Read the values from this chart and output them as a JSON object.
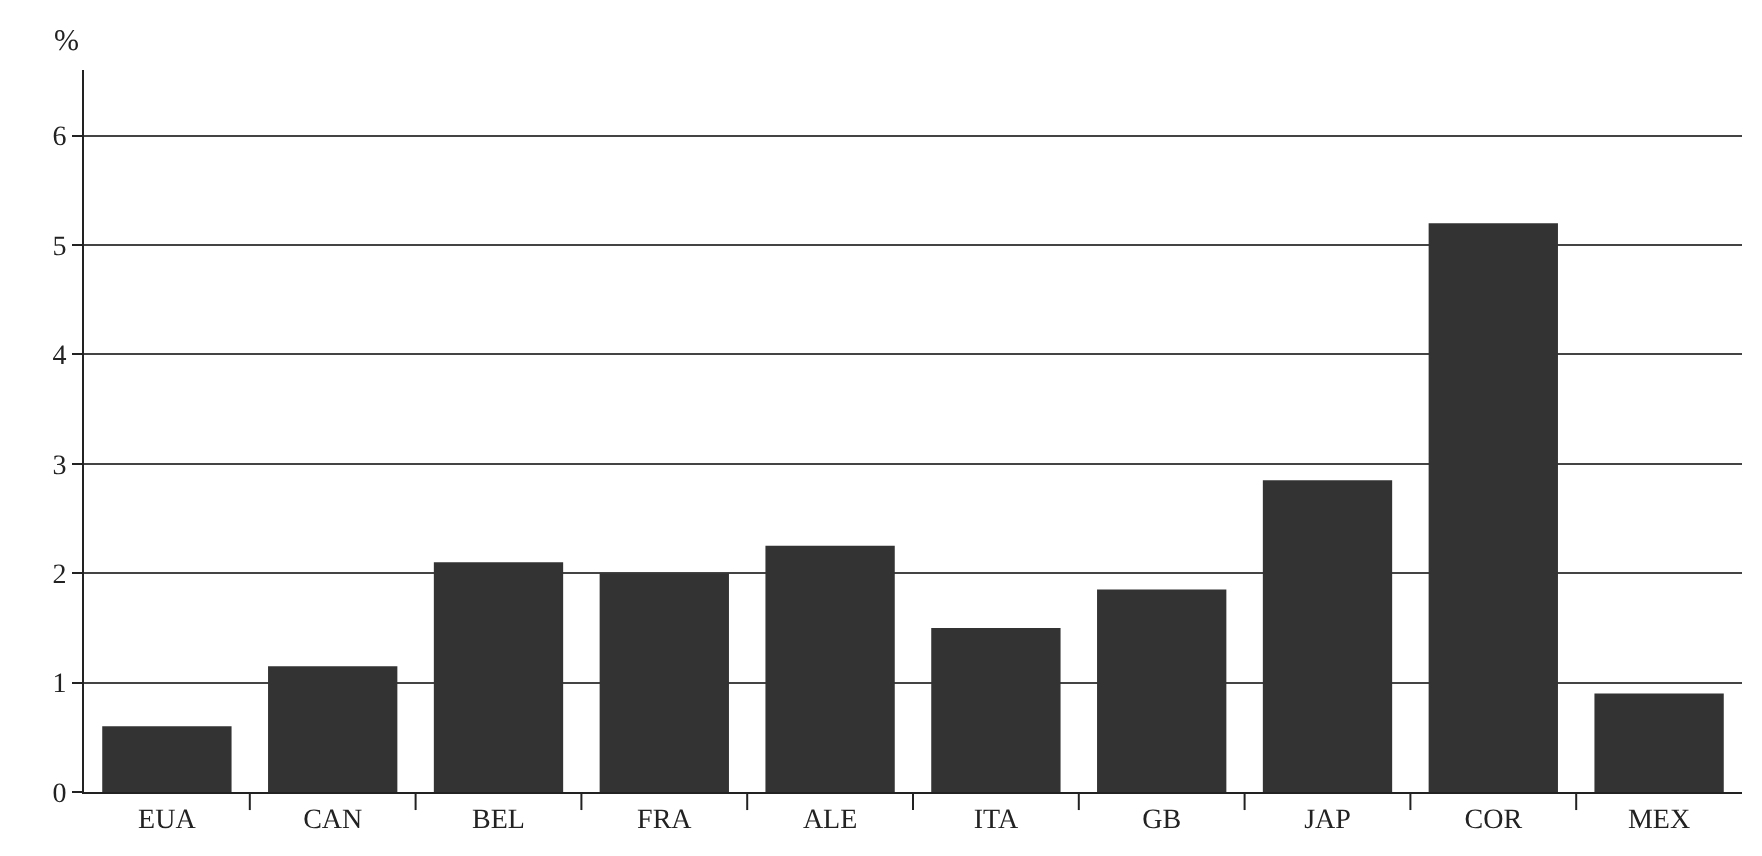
{
  "chart_data": {
    "type": "bar",
    "ylabel": "%",
    "categories": [
      "EUA",
      "CAN",
      "BEL",
      "FRA",
      "ALE",
      "ITA",
      "GB",
      "JAP",
      "COR",
      "MEX"
    ],
    "values": [
      0.6,
      1.15,
      2.1,
      2.0,
      2.25,
      1.5,
      1.85,
      2.85,
      5.2,
      0.9
    ],
    "color": "#333333",
    "ylim": [
      0,
      6.6
    ],
    "yticks": [
      0,
      1,
      2,
      3,
      4,
      5,
      6
    ],
    "grid": "y"
  }
}
